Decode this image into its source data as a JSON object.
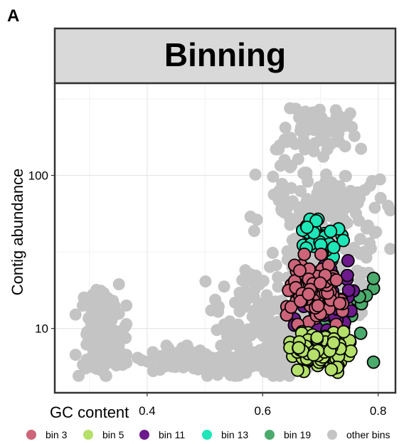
{
  "panel_label": "A",
  "chart_data": {
    "type": "scatter",
    "title": "Binning",
    "xlabel": "GC content",
    "ylabel": "Contig abundance",
    "x_ticks": [
      {
        "value": 0.4,
        "label": "0.4"
      },
      {
        "value": 0.6,
        "label": "0.6"
      },
      {
        "value": 0.8,
        "label": "0.8"
      }
    ],
    "y_ticks": [
      {
        "value": 10,
        "label": "10"
      },
      {
        "value": 100,
        "label": "100"
      }
    ],
    "xlim": [
      0.24,
      0.83
    ],
    "ylim": [
      3.8,
      400
    ],
    "y_scale": "log",
    "grid": true,
    "legend_position": "bottom",
    "series": [
      {
        "name": "other bins",
        "color": "#c4c4c4",
        "outline": false,
        "clusters": [
          {
            "x": 0.32,
            "y": 9,
            "sx": 0.02,
            "sy": 0.35,
            "n": 140
          },
          {
            "x": 0.52,
            "y": 6.2,
            "sx": 0.08,
            "sy": 0.1,
            "n": 170
          },
          {
            "x": 0.6,
            "y": 10,
            "sx": 0.045,
            "sy": 0.42,
            "n": 160
          },
          {
            "x": 0.7,
            "y": 210,
            "sx": 0.032,
            "sy": 0.17,
            "n": 65
          },
          {
            "x": 0.7,
            "y": 55,
            "sx": 0.055,
            "sy": 0.45,
            "n": 190
          },
          {
            "x": 0.71,
            "y": 15,
            "sx": 0.03,
            "sy": 0.35,
            "n": 70
          }
        ]
      },
      {
        "name": "bin 19",
        "color": "#4aab6d",
        "outline": true,
        "clusters": [
          {
            "x": 0.715,
            "y": 13,
            "sx": 0.035,
            "sy": 0.35,
            "n": 30
          }
        ]
      },
      {
        "name": "bin 11",
        "color": "#6d1a8c",
        "outline": true,
        "clusters": [
          {
            "x": 0.71,
            "y": 15,
            "sx": 0.025,
            "sy": 0.3,
            "n": 45
          }
        ]
      },
      {
        "name": "bin 13",
        "color": "#1de6b8",
        "outline": true,
        "clusters": [
          {
            "x": 0.7,
            "y": 38,
            "sx": 0.018,
            "sy": 0.14,
            "n": 55
          }
        ]
      },
      {
        "name": "bin 3",
        "color": "#cd6479",
        "outline": true,
        "clusters": [
          {
            "x": 0.69,
            "y": 18,
            "sx": 0.022,
            "sy": 0.24,
            "n": 110
          }
        ]
      },
      {
        "name": "bin 5",
        "color": "#b5e06a",
        "outline": true,
        "clusters": [
          {
            "x": 0.7,
            "y": 7,
            "sx": 0.024,
            "sy": 0.14,
            "n": 130
          }
        ]
      }
    ],
    "legend_order": [
      "bin 3",
      "bin 5",
      "bin 11",
      "bin 13",
      "bin 19",
      "other bins"
    ]
  }
}
